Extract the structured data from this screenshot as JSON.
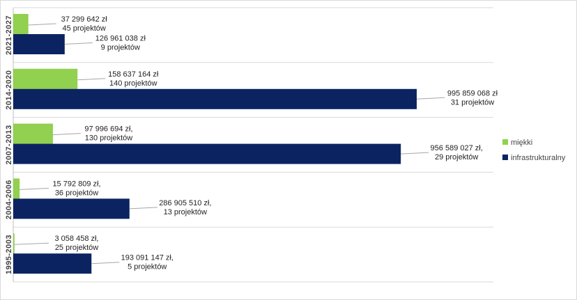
{
  "chart_data": {
    "type": "bar",
    "orientation": "horizontal",
    "categories": [
      "2021-2027",
      "2014-2020",
      "2007-2013",
      "2004-2006",
      "1995-2003"
    ],
    "series": [
      {
        "name": "miękki",
        "color": "#92d050",
        "values": [
          37299642,
          158637164,
          97996694,
          15792809,
          3058458
        ],
        "labels": [
          [
            "37 299 642 zł",
            "45 projektów"
          ],
          [
            "158 637 164 zł",
            "140 projektów"
          ],
          [
            "97 996 694 zł,",
            "130 projektów"
          ],
          [
            "15 792 809 zł,",
            "36 projektów"
          ],
          [
            "3 058 458 zł,",
            "25 projektów"
          ]
        ]
      },
      {
        "name": "infrastrukturalny",
        "color": "#0b2461",
        "values": [
          126961038,
          995859068,
          956589027,
          286905510,
          193091147
        ],
        "labels": [
          [
            "126 961 038 zł",
            "9 projektów"
          ],
          [
            "995 859 068 zł",
            "31 projektów"
          ],
          [
            "956 589 027 zł,",
            "29 projektów"
          ],
          [
            "286 905 510 zł,",
            "13 projektów"
          ],
          [
            "193 091 147 zł,",
            "5 projektów"
          ]
        ]
      }
    ],
    "xlim": [
      0,
      1400000000
    ],
    "legend": "right",
    "grid": false
  }
}
